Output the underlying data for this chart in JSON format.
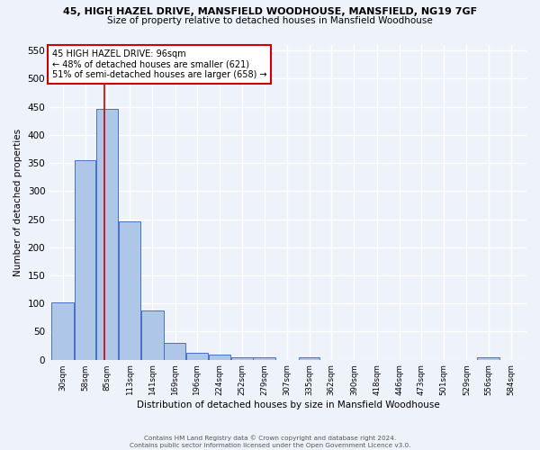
{
  "title_line1": "45, HIGH HAZEL DRIVE, MANSFIELD WOODHOUSE, MANSFIELD, NG19 7GF",
  "title_line2": "Size of property relative to detached houses in Mansfield Woodhouse",
  "xlabel": "Distribution of detached houses by size in Mansfield Woodhouse",
  "ylabel": "Number of detached properties",
  "footer_line1": "Contains HM Land Registry data © Crown copyright and database right 2024.",
  "footer_line2": "Contains public sector information licensed under the Open Government Licence v3.0.",
  "annotation_line1": "45 HIGH HAZEL DRIVE: 96sqm",
  "annotation_line2": "← 48% of detached houses are smaller (621)",
  "annotation_line3": "51% of semi-detached houses are larger (658) →",
  "property_size": 96,
  "bin_edges": [
    30,
    58,
    85,
    113,
    141,
    169,
    196,
    224,
    252,
    279,
    307,
    335,
    362,
    390,
    418,
    446,
    473,
    501,
    529,
    556,
    584
  ],
  "bar_heights": [
    102,
    355,
    446,
    246,
    88,
    30,
    13,
    9,
    5,
    5,
    0,
    5,
    0,
    0,
    0,
    0,
    0,
    0,
    0,
    5
  ],
  "bar_color": "#aec6e8",
  "bar_edge_color": "#4472c4",
  "vline_color": "#cc0000",
  "vline_x": 96,
  "annotation_box_color": "#cc0000",
  "background_color": "#eef2fb",
  "grid_color": "#ffffff",
  "ylim": [
    0,
    560
  ],
  "yticks": [
    0,
    50,
    100,
    150,
    200,
    250,
    300,
    350,
    400,
    450,
    500,
    550
  ]
}
